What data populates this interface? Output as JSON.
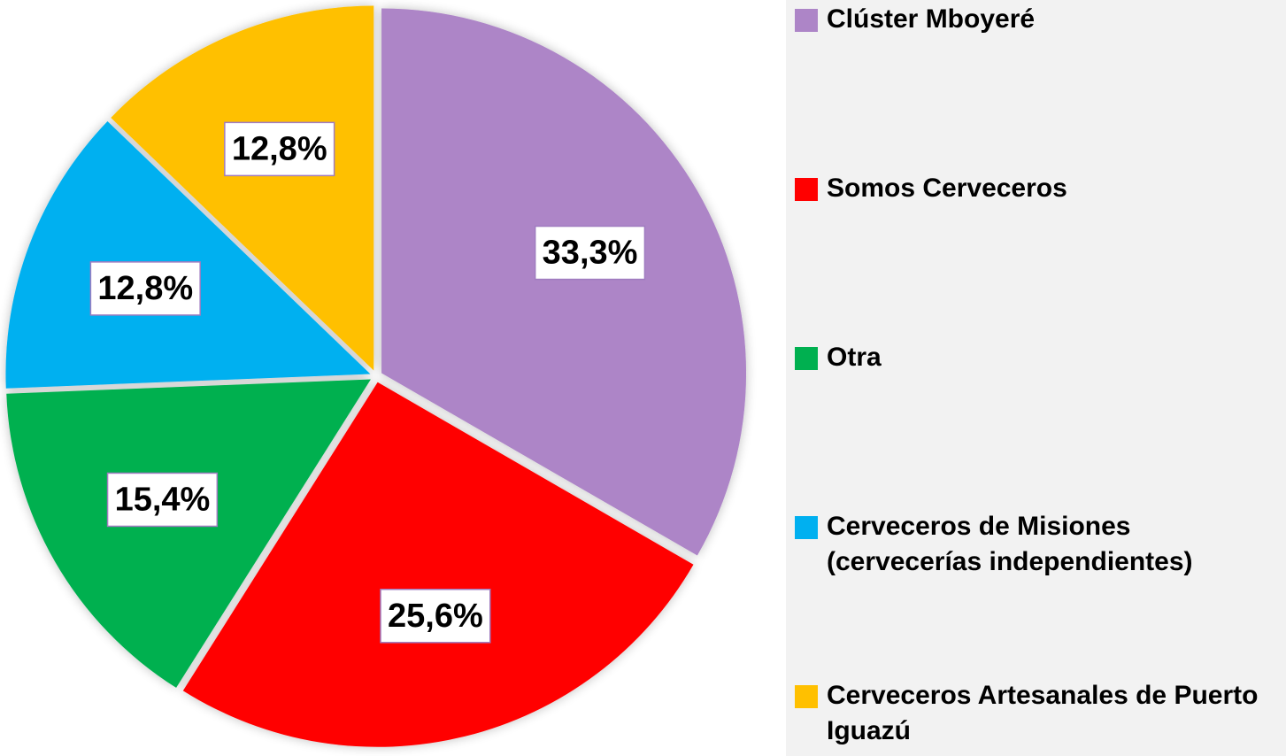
{
  "chart_data": {
    "type": "pie",
    "categories": [
      "Clúster Mboyeré",
      "Somos Cerveceros",
      "Otra",
      "Cerveceros de Misiones (cervecerías independientes)",
      "Cerveceros Artesanales de Puerto Iguazú"
    ],
    "values": [
      33.3,
      25.6,
      15.4,
      12.8,
      12.8
    ],
    "value_labels": [
      "33,3%",
      "25,6%",
      "15,4%",
      "12,8%",
      "12,8%"
    ],
    "colors": [
      "#ad85c7",
      "#ff0000",
      "#00b050",
      "#00b0f0",
      "#ffc000"
    ],
    "legend": "right"
  }
}
